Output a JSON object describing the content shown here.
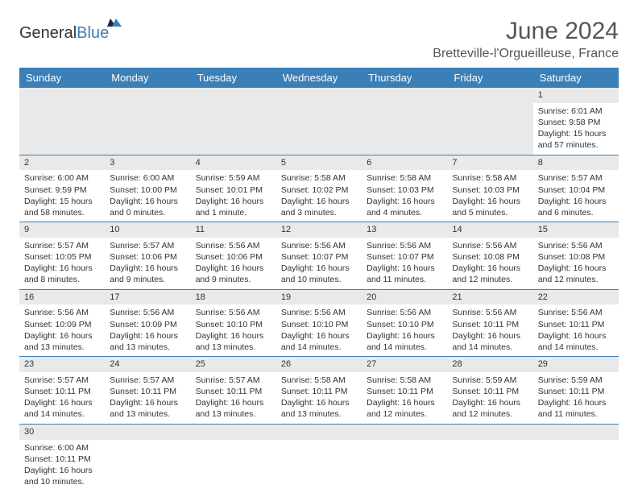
{
  "brand": {
    "part1": "General",
    "part2": "Blue"
  },
  "header": {
    "title": "June 2024",
    "location": "Bretteville-l'Orgueilleuse, France"
  },
  "columns": [
    "Sunday",
    "Monday",
    "Tuesday",
    "Wednesday",
    "Thursday",
    "Friday",
    "Saturday"
  ],
  "style": {
    "header_bg": "#3b7fb8",
    "header_fg": "#ffffff",
    "daynum_bg": "#e9e9e9",
    "rule_color": "#3b7fb8",
    "page_bg": "#ffffff",
    "text_color": "#333333",
    "title_fontsize": 30,
    "location_fontsize": 16,
    "dayhead_fontsize": 13,
    "body_fontsize": 10.5
  },
  "weeks": [
    {
      "nums": [
        "",
        "",
        "",
        "",
        "",
        "",
        "1"
      ],
      "sunrise": [
        "",
        "",
        "",
        "",
        "",
        "",
        "Sunrise: 6:01 AM"
      ],
      "sunset": [
        "",
        "",
        "",
        "",
        "",
        "",
        "Sunset: 9:58 PM"
      ],
      "day1": [
        "",
        "",
        "",
        "",
        "",
        "",
        "Daylight: 15 hours"
      ],
      "day2": [
        "",
        "",
        "",
        "",
        "",
        "",
        "and 57 minutes."
      ]
    },
    {
      "nums": [
        "2",
        "3",
        "4",
        "5",
        "6",
        "7",
        "8"
      ],
      "sunrise": [
        "Sunrise: 6:00 AM",
        "Sunrise: 6:00 AM",
        "Sunrise: 5:59 AM",
        "Sunrise: 5:58 AM",
        "Sunrise: 5:58 AM",
        "Sunrise: 5:58 AM",
        "Sunrise: 5:57 AM"
      ],
      "sunset": [
        "Sunset: 9:59 PM",
        "Sunset: 10:00 PM",
        "Sunset: 10:01 PM",
        "Sunset: 10:02 PM",
        "Sunset: 10:03 PM",
        "Sunset: 10:03 PM",
        "Sunset: 10:04 PM"
      ],
      "day1": [
        "Daylight: 15 hours",
        "Daylight: 16 hours",
        "Daylight: 16 hours",
        "Daylight: 16 hours",
        "Daylight: 16 hours",
        "Daylight: 16 hours",
        "Daylight: 16 hours"
      ],
      "day2": [
        "and 58 minutes.",
        "and 0 minutes.",
        "and 1 minute.",
        "and 3 minutes.",
        "and 4 minutes.",
        "and 5 minutes.",
        "and 6 minutes."
      ]
    },
    {
      "nums": [
        "9",
        "10",
        "11",
        "12",
        "13",
        "14",
        "15"
      ],
      "sunrise": [
        "Sunrise: 5:57 AM",
        "Sunrise: 5:57 AM",
        "Sunrise: 5:56 AM",
        "Sunrise: 5:56 AM",
        "Sunrise: 5:56 AM",
        "Sunrise: 5:56 AM",
        "Sunrise: 5:56 AM"
      ],
      "sunset": [
        "Sunset: 10:05 PM",
        "Sunset: 10:06 PM",
        "Sunset: 10:06 PM",
        "Sunset: 10:07 PM",
        "Sunset: 10:07 PM",
        "Sunset: 10:08 PM",
        "Sunset: 10:08 PM"
      ],
      "day1": [
        "Daylight: 16 hours",
        "Daylight: 16 hours",
        "Daylight: 16 hours",
        "Daylight: 16 hours",
        "Daylight: 16 hours",
        "Daylight: 16 hours",
        "Daylight: 16 hours"
      ],
      "day2": [
        "and 8 minutes.",
        "and 9 minutes.",
        "and 9 minutes.",
        "and 10 minutes.",
        "and 11 minutes.",
        "and 12 minutes.",
        "and 12 minutes."
      ]
    },
    {
      "nums": [
        "16",
        "17",
        "18",
        "19",
        "20",
        "21",
        "22"
      ],
      "sunrise": [
        "Sunrise: 5:56 AM",
        "Sunrise: 5:56 AM",
        "Sunrise: 5:56 AM",
        "Sunrise: 5:56 AM",
        "Sunrise: 5:56 AM",
        "Sunrise: 5:56 AM",
        "Sunrise: 5:56 AM"
      ],
      "sunset": [
        "Sunset: 10:09 PM",
        "Sunset: 10:09 PM",
        "Sunset: 10:10 PM",
        "Sunset: 10:10 PM",
        "Sunset: 10:10 PM",
        "Sunset: 10:11 PM",
        "Sunset: 10:11 PM"
      ],
      "day1": [
        "Daylight: 16 hours",
        "Daylight: 16 hours",
        "Daylight: 16 hours",
        "Daylight: 16 hours",
        "Daylight: 16 hours",
        "Daylight: 16 hours",
        "Daylight: 16 hours"
      ],
      "day2": [
        "and 13 minutes.",
        "and 13 minutes.",
        "and 13 minutes.",
        "and 14 minutes.",
        "and 14 minutes.",
        "and 14 minutes.",
        "and 14 minutes."
      ]
    },
    {
      "nums": [
        "23",
        "24",
        "25",
        "26",
        "27",
        "28",
        "29"
      ],
      "sunrise": [
        "Sunrise: 5:57 AM",
        "Sunrise: 5:57 AM",
        "Sunrise: 5:57 AM",
        "Sunrise: 5:58 AM",
        "Sunrise: 5:58 AM",
        "Sunrise: 5:59 AM",
        "Sunrise: 5:59 AM"
      ],
      "sunset": [
        "Sunset: 10:11 PM",
        "Sunset: 10:11 PM",
        "Sunset: 10:11 PM",
        "Sunset: 10:11 PM",
        "Sunset: 10:11 PM",
        "Sunset: 10:11 PM",
        "Sunset: 10:11 PM"
      ],
      "day1": [
        "Daylight: 16 hours",
        "Daylight: 16 hours",
        "Daylight: 16 hours",
        "Daylight: 16 hours",
        "Daylight: 16 hours",
        "Daylight: 16 hours",
        "Daylight: 16 hours"
      ],
      "day2": [
        "and 14 minutes.",
        "and 13 minutes.",
        "and 13 minutes.",
        "and 13 minutes.",
        "and 12 minutes.",
        "and 12 minutes.",
        "and 11 minutes."
      ]
    },
    {
      "nums": [
        "30",
        "",
        "",
        "",
        "",
        "",
        ""
      ],
      "sunrise": [
        "Sunrise: 6:00 AM",
        "",
        "",
        "",
        "",
        "",
        ""
      ],
      "sunset": [
        "Sunset: 10:11 PM",
        "",
        "",
        "",
        "",
        "",
        ""
      ],
      "day1": [
        "Daylight: 16 hours",
        "",
        "",
        "",
        "",
        "",
        ""
      ],
      "day2": [
        "and 10 minutes.",
        "",
        "",
        "",
        "",
        "",
        ""
      ]
    }
  ]
}
